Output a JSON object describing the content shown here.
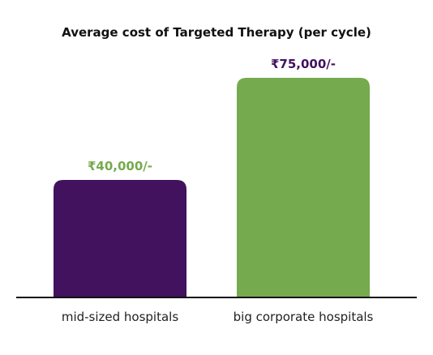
{
  "chart_data": {
    "type": "bar",
    "title": "Average cost of Targeted Therapy (per cycle)",
    "categories": [
      "mid-sized hospitals",
      "big corporate hospitals"
    ],
    "values": [
      40000,
      75000
    ],
    "value_labels": [
      "₹40,000/-",
      "₹75,000/-"
    ],
    "bar_colors": [
      "#42125e",
      "#76aa4e"
    ],
    "value_label_colors": [
      "#76aa4e",
      "#42125e"
    ],
    "xlabel": "",
    "ylabel": "",
    "ylim": [
      0,
      75000
    ],
    "grid": false,
    "legend": "none"
  }
}
